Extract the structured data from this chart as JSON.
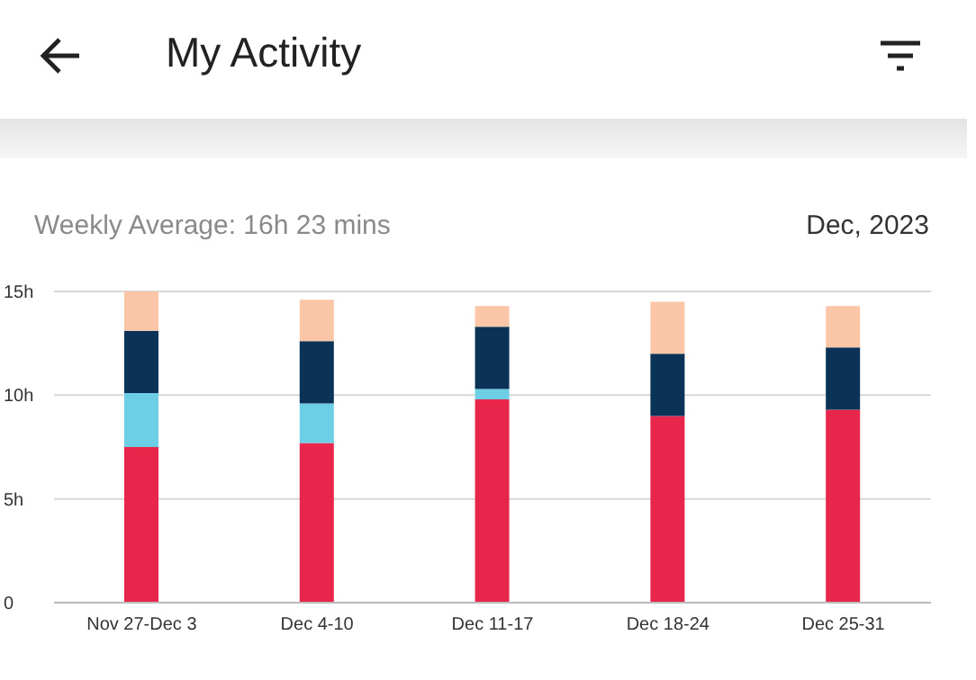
{
  "chart_data": {
    "type": "bar",
    "title": "My Activity",
    "subtitle": "Weekly Average: 16h 23 mins",
    "annotations": [
      "Dec, 2023"
    ],
    "categories": [
      "Nov 27-Dec 3",
      "Dec 4-10",
      "Dec 11-17",
      "Dec 18-24",
      "Dec 25-31"
    ],
    "stacked": true,
    "series": [
      {
        "color": "#e8254a",
        "values": [
          7.5,
          7.7,
          9.8,
          9.0,
          9.3
        ]
      },
      {
        "color": "#6ccfe6",
        "values": [
          2.6,
          1.9,
          0.5,
          0,
          0
        ]
      },
      {
        "color": "#0b3358",
        "values": [
          3.0,
          3.0,
          3.0,
          3.0,
          3.0
        ]
      },
      {
        "color": "#fbc6a8",
        "values": [
          1.9,
          2.0,
          1.0,
          2.5,
          2.0
        ]
      }
    ],
    "ylim": [
      0,
      15
    ],
    "yticks": [
      0,
      {
        "value": 5,
        "label": "5h"
      },
      {
        "value": 10,
        "label": "10h"
      },
      {
        "value": 15,
        "label": "15h"
      }
    ],
    "grid": "y",
    "legend": false
  }
}
